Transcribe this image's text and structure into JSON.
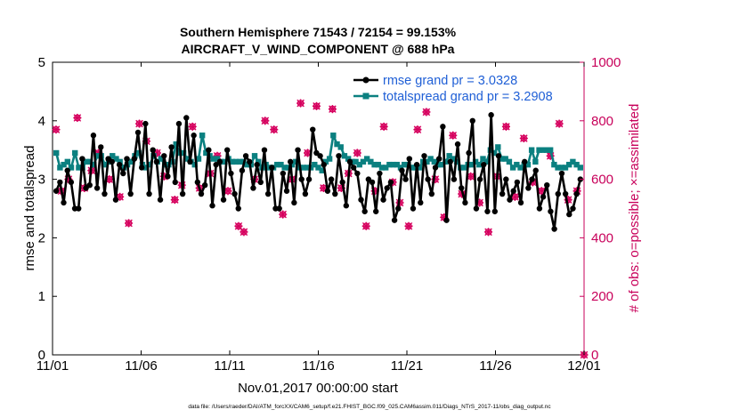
{
  "chart_data": {
    "type": "line",
    "title_line1": "Southern Hemisphere 71543 / 72154 = 99.153%",
    "title_line2": "AIRCRAFT_V_WIND_COMPONENT @ 688 hPa",
    "xlabel": "Nov.01,2017 00:00:00 start",
    "ylabel_left": "rmse and totalspread",
    "ylabel_right": "# of obs: o=possible; ×=assimilated",
    "xlim": [
      0,
      30
    ],
    "ylim_left": [
      0,
      5
    ],
    "ylim_right": [
      0,
      1000
    ],
    "x_ticks": [
      {
        "value": 0,
        "label": "11/01"
      },
      {
        "value": 5,
        "label": "11/06"
      },
      {
        "value": 10,
        "label": "11/11"
      },
      {
        "value": 15,
        "label": "11/16"
      },
      {
        "value": 20,
        "label": "11/21"
      },
      {
        "value": 25,
        "label": "11/26"
      },
      {
        "value": 30,
        "label": "12/01"
      }
    ],
    "y_ticks_left": [
      "0",
      "1",
      "2",
      "3",
      "4",
      "5"
    ],
    "y_ticks_right": [
      "0",
      "200",
      "400",
      "600",
      "800",
      "1000"
    ],
    "series": [
      {
        "name": "rmse grand pr = 3.0328",
        "color": "#000000",
        "values": [
          2.8,
          2.95,
          2.6,
          3.15,
          2.95,
          2.5,
          2.5,
          3.35,
          2.85,
          2.9,
          3.75,
          2.85,
          3.55,
          2.75,
          3.35,
          3.3,
          2.65,
          3.25,
          3.1,
          3.35,
          2.75,
          3.35,
          3.8,
          3.2,
          3.95,
          2.75,
          3.5,
          3.3,
          2.65,
          3.4,
          3.05,
          3.55,
          2.95,
          3.95,
          2.75,
          4.05,
          3.3,
          3.75,
          2.95,
          2.75,
          2.9,
          3.5,
          2.55,
          3.25,
          3.3,
          2.65,
          3.5,
          3.1,
          2.75,
          2.5,
          3.15,
          3.4,
          3.3,
          2.85,
          3.25,
          2.95,
          3.5,
          2.75,
          3.2,
          2.5,
          2.5,
          3.1,
          2.8,
          3.3,
          2.6,
          3.5,
          3.0,
          2.75,
          3.0,
          3.85,
          3.45,
          3.4,
          3.25,
          2.8,
          3.0,
          2.75,
          3.4,
          2.95,
          2.55,
          3.3,
          3.2,
          3.1,
          2.65,
          2.45,
          3.0,
          2.95,
          2.45,
          3.1,
          2.65,
          2.85,
          2.95,
          2.3,
          2.5,
          3.15,
          3.0,
          3.35,
          2.5,
          3.25,
          2.6,
          3.4,
          3.0,
          2.75,
          3.2,
          3.35,
          3.9,
          2.3,
          3.3,
          3.0,
          3.6,
          2.85,
          2.6,
          3.45,
          4.0,
          2.5,
          3.0,
          3.25,
          2.45,
          4.1,
          2.45,
          3.4,
          2.75,
          3.0,
          2.65,
          2.8,
          2.95,
          2.6,
          3.3,
          2.85,
          3.0,
          3.15,
          2.5,
          2.7,
          2.9,
          2.45,
          2.15,
          2.75,
          3.1,
          2.75,
          2.4,
          2.5,
          2.75,
          3.0
        ]
      },
      {
        "name": "totalspread grand pr = 3.2908",
        "color": "#0b8080",
        "values": [
          3.45,
          3.2,
          3.25,
          3.3,
          3.2,
          3.45,
          3.2,
          3.2,
          3.3,
          3.3,
          3.25,
          3.4,
          3.4,
          3.25,
          3.3,
          3.4,
          3.35,
          3.3,
          3.2,
          3.25,
          3.3,
          3.4,
          3.45,
          3.25,
          3.2,
          3.25,
          3.4,
          3.3,
          3.35,
          3.25,
          3.25,
          3.3,
          3.6,
          3.45,
          3.45,
          3.35,
          3.3,
          3.25,
          3.35,
          3.75,
          3.45,
          3.4,
          3.35,
          3.35,
          3.3,
          3.3,
          3.35,
          3.3,
          3.3,
          3.3,
          3.3,
          3.25,
          3.25,
          3.4,
          3.3,
          3.2,
          3.25,
          3.2,
          3.2,
          3.25,
          3.25,
          3.2,
          3.2,
          3.25,
          3.3,
          3.2,
          3.2,
          3.2,
          3.2,
          3.25,
          3.2,
          3.15,
          3.3,
          3.35,
          3.75,
          3.6,
          3.55,
          3.4,
          3.35,
          3.3,
          3.3,
          3.25,
          3.3,
          3.35,
          3.3,
          3.25,
          3.25,
          3.2,
          3.2,
          3.25,
          3.25,
          3.25,
          3.2,
          3.25,
          3.25,
          3.2,
          3.2,
          3.2,
          3.3,
          3.3,
          3.35,
          3.3,
          3.25,
          3.25,
          3.3,
          3.4,
          3.35,
          3.3,
          3.2,
          3.2,
          3.25,
          3.25,
          3.3,
          3.25,
          3.35,
          3.3,
          3.5,
          3.45,
          3.55,
          3.35,
          3.35,
          3.3,
          3.2,
          3.25,
          3.2,
          3.25,
          3.25,
          3.5,
          3.3,
          3.5,
          3.5,
          3.5,
          3.5,
          3.25,
          3.2,
          3.2,
          3.2,
          3.25,
          3.3,
          3.25,
          3.2
        ]
      }
    ],
    "obs_points": [
      {
        "x": 0.2,
        "count": 770,
        "marker": "o"
      },
      {
        "x": 0.2,
        "count": 770,
        "marker": "x"
      },
      {
        "x": 0.5,
        "count": 560,
        "marker": "o"
      },
      {
        "x": 0.5,
        "count": 560,
        "marker": "x"
      },
      {
        "x": 0.9,
        "count": 600,
        "marker": "o"
      },
      {
        "x": 0.9,
        "count": 600,
        "marker": "x"
      },
      {
        "x": 1.4,
        "count": 810,
        "marker": "o"
      },
      {
        "x": 1.4,
        "count": 810,
        "marker": "x"
      },
      {
        "x": 1.8,
        "count": 570,
        "marker": "o"
      },
      {
        "x": 1.8,
        "count": 570,
        "marker": "x"
      },
      {
        "x": 2.2,
        "count": 630,
        "marker": "o"
      },
      {
        "x": 2.2,
        "count": 630,
        "marker": "x"
      },
      {
        "x": 2.6,
        "count": 690,
        "marker": "o"
      },
      {
        "x": 2.6,
        "count": 690,
        "marker": "x"
      },
      {
        "x": 3.2,
        "count": 600,
        "marker": "o"
      },
      {
        "x": 3.2,
        "count": 600,
        "marker": "x"
      },
      {
        "x": 3.8,
        "count": 540,
        "marker": "o"
      },
      {
        "x": 3.8,
        "count": 540,
        "marker": "x"
      },
      {
        "x": 4.3,
        "count": 450,
        "marker": "o"
      },
      {
        "x": 4.3,
        "count": 450,
        "marker": "x"
      },
      {
        "x": 4.9,
        "count": 790,
        "marker": "o"
      },
      {
        "x": 4.9,
        "count": 790,
        "marker": "x"
      },
      {
        "x": 5.3,
        "count": 730,
        "marker": "o"
      },
      {
        "x": 5.3,
        "count": 730,
        "marker": "x"
      },
      {
        "x": 5.9,
        "count": 690,
        "marker": "o"
      },
      {
        "x": 5.9,
        "count": 690,
        "marker": "x"
      },
      {
        "x": 6.3,
        "count": 610,
        "marker": "o"
      },
      {
        "x": 6.3,
        "count": 610,
        "marker": "x"
      },
      {
        "x": 6.9,
        "count": 530,
        "marker": "o"
      },
      {
        "x": 6.9,
        "count": 530,
        "marker": "x"
      },
      {
        "x": 7.3,
        "count": 580,
        "marker": "o"
      },
      {
        "x": 7.3,
        "count": 580,
        "marker": "x"
      },
      {
        "x": 7.9,
        "count": 780,
        "marker": "o"
      },
      {
        "x": 7.9,
        "count": 780,
        "marker": "x"
      },
      {
        "x": 8.3,
        "count": 570,
        "marker": "o"
      },
      {
        "x": 8.3,
        "count": 570,
        "marker": "x"
      },
      {
        "x": 8.9,
        "count": 620,
        "marker": "o"
      },
      {
        "x": 8.9,
        "count": 620,
        "marker": "x"
      },
      {
        "x": 9.3,
        "count": 680,
        "marker": "o"
      },
      {
        "x": 9.3,
        "count": 680,
        "marker": "x"
      },
      {
        "x": 9.9,
        "count": 560,
        "marker": "o"
      },
      {
        "x": 9.9,
        "count": 560,
        "marker": "x"
      },
      {
        "x": 10.5,
        "count": 440,
        "marker": "o"
      },
      {
        "x": 10.5,
        "count": 440,
        "marker": "x"
      },
      {
        "x": 10.8,
        "count": 420,
        "marker": "o"
      },
      {
        "x": 10.8,
        "count": 420,
        "marker": "x"
      },
      {
        "x": 11.4,
        "count": 600,
        "marker": "o"
      },
      {
        "x": 11.4,
        "count": 600,
        "marker": "x"
      },
      {
        "x": 12.0,
        "count": 800,
        "marker": "o"
      },
      {
        "x": 12.0,
        "count": 800,
        "marker": "x"
      },
      {
        "x": 12.5,
        "count": 770,
        "marker": "o"
      },
      {
        "x": 12.5,
        "count": 770,
        "marker": "x"
      },
      {
        "x": 13.0,
        "count": 480,
        "marker": "o"
      },
      {
        "x": 13.0,
        "count": 480,
        "marker": "x"
      },
      {
        "x": 13.5,
        "count": 600,
        "marker": "o"
      },
      {
        "x": 13.5,
        "count": 600,
        "marker": "x"
      },
      {
        "x": 14.0,
        "count": 860,
        "marker": "o"
      },
      {
        "x": 14.0,
        "count": 860,
        "marker": "x"
      },
      {
        "x": 14.4,
        "count": 690,
        "marker": "o"
      },
      {
        "x": 14.4,
        "count": 690,
        "marker": "x"
      },
      {
        "x": 14.9,
        "count": 850,
        "marker": "o"
      },
      {
        "x": 14.9,
        "count": 850,
        "marker": "x"
      },
      {
        "x": 15.3,
        "count": 570,
        "marker": "o"
      },
      {
        "x": 15.3,
        "count": 570,
        "marker": "x"
      },
      {
        "x": 15.8,
        "count": 840,
        "marker": "o"
      },
      {
        "x": 15.8,
        "count": 840,
        "marker": "x"
      },
      {
        "x": 16.3,
        "count": 570,
        "marker": "o"
      },
      {
        "x": 16.3,
        "count": 570,
        "marker": "x"
      },
      {
        "x": 16.7,
        "count": 620,
        "marker": "o"
      },
      {
        "x": 16.7,
        "count": 620,
        "marker": "x"
      },
      {
        "x": 17.2,
        "count": 690,
        "marker": "o"
      },
      {
        "x": 17.2,
        "count": 690,
        "marker": "x"
      },
      {
        "x": 17.7,
        "count": 440,
        "marker": "o"
      },
      {
        "x": 17.7,
        "count": 440,
        "marker": "x"
      },
      {
        "x": 18.2,
        "count": 560,
        "marker": "o"
      },
      {
        "x": 18.2,
        "count": 560,
        "marker": "x"
      },
      {
        "x": 18.7,
        "count": 780,
        "marker": "o"
      },
      {
        "x": 18.7,
        "count": 780,
        "marker": "x"
      },
      {
        "x": 19.2,
        "count": 590,
        "marker": "o"
      },
      {
        "x": 19.2,
        "count": 590,
        "marker": "x"
      },
      {
        "x": 19.6,
        "count": 520,
        "marker": "o"
      },
      {
        "x": 19.6,
        "count": 520,
        "marker": "x"
      },
      {
        "x": 20.1,
        "count": 440,
        "marker": "o"
      },
      {
        "x": 20.1,
        "count": 440,
        "marker": "x"
      },
      {
        "x": 20.6,
        "count": 770,
        "marker": "o"
      },
      {
        "x": 20.6,
        "count": 770,
        "marker": "x"
      },
      {
        "x": 21.1,
        "count": 830,
        "marker": "o"
      },
      {
        "x": 21.1,
        "count": 830,
        "marker": "x"
      },
      {
        "x": 21.6,
        "count": 600,
        "marker": "o"
      },
      {
        "x": 21.6,
        "count": 600,
        "marker": "x"
      },
      {
        "x": 22.1,
        "count": 470,
        "marker": "o"
      },
      {
        "x": 22.1,
        "count": 470,
        "marker": "x"
      },
      {
        "x": 22.6,
        "count": 750,
        "marker": "o"
      },
      {
        "x": 22.6,
        "count": 750,
        "marker": "x"
      },
      {
        "x": 23.1,
        "count": 550,
        "marker": "o"
      },
      {
        "x": 23.1,
        "count": 550,
        "marker": "x"
      },
      {
        "x": 23.6,
        "count": 610,
        "marker": "o"
      },
      {
        "x": 23.6,
        "count": 610,
        "marker": "x"
      },
      {
        "x": 24.1,
        "count": 520,
        "marker": "o"
      },
      {
        "x": 24.1,
        "count": 520,
        "marker": "x"
      },
      {
        "x": 24.6,
        "count": 420,
        "marker": "o"
      },
      {
        "x": 24.6,
        "count": 420,
        "marker": "x"
      },
      {
        "x": 25.1,
        "count": 610,
        "marker": "o"
      },
      {
        "x": 25.1,
        "count": 610,
        "marker": "x"
      },
      {
        "x": 25.6,
        "count": 780,
        "marker": "o"
      },
      {
        "x": 25.6,
        "count": 780,
        "marker": "x"
      },
      {
        "x": 26.1,
        "count": 540,
        "marker": "o"
      },
      {
        "x": 26.1,
        "count": 540,
        "marker": "x"
      },
      {
        "x": 26.6,
        "count": 740,
        "marker": "o"
      },
      {
        "x": 26.6,
        "count": 740,
        "marker": "x"
      },
      {
        "x": 27.1,
        "count": 590,
        "marker": "o"
      },
      {
        "x": 27.1,
        "count": 590,
        "marker": "x"
      },
      {
        "x": 27.6,
        "count": 560,
        "marker": "o"
      },
      {
        "x": 27.6,
        "count": 560,
        "marker": "x"
      },
      {
        "x": 28.1,
        "count": 680,
        "marker": "o"
      },
      {
        "x": 28.1,
        "count": 680,
        "marker": "x"
      },
      {
        "x": 28.6,
        "count": 790,
        "marker": "o"
      },
      {
        "x": 28.6,
        "count": 790,
        "marker": "x"
      },
      {
        "x": 29.1,
        "count": 530,
        "marker": "o"
      },
      {
        "x": 29.1,
        "count": 530,
        "marker": "x"
      },
      {
        "x": 29.6,
        "count": 560,
        "marker": "o"
      },
      {
        "x": 29.6,
        "count": 560,
        "marker": "x"
      },
      {
        "x": 30.0,
        "count": 0,
        "marker": "o"
      },
      {
        "x": 30.0,
        "count": 0,
        "marker": "x"
      }
    ],
    "footer": "data file: /Users/raeder/DAI/ATM_forcXX/CAM6_setup/f.e21.FHIST_BGC.f09_025.CAM6assim.011/Diags_NTrS_2017-11/obs_diag_output.nc",
    "colors": {
      "rmse": "#000000",
      "spread": "#0b8080",
      "obs": "#d6005e",
      "legend_text": "#1f5fd6",
      "right_axis": "#c8005a"
    }
  }
}
